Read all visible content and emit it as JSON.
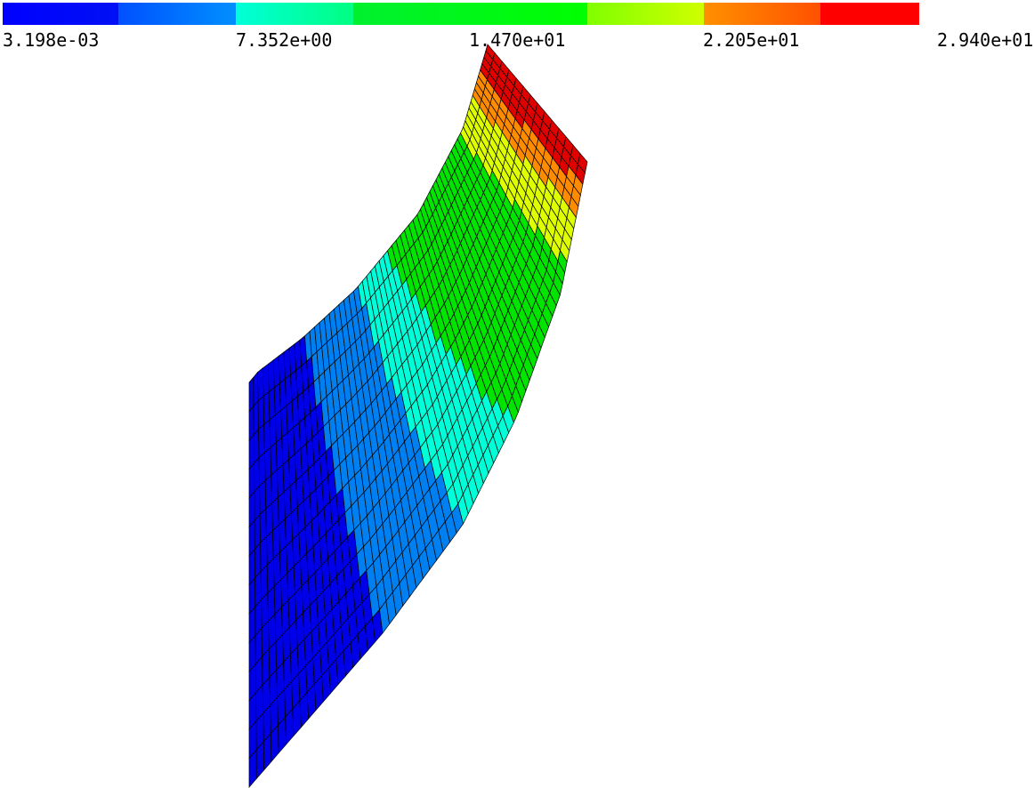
{
  "colorbar": {
    "labels": [
      "3.198e-03",
      "7.352e+00",
      "1.470e+01",
      "2.205e+01",
      "2.940e+01"
    ]
  }
}
